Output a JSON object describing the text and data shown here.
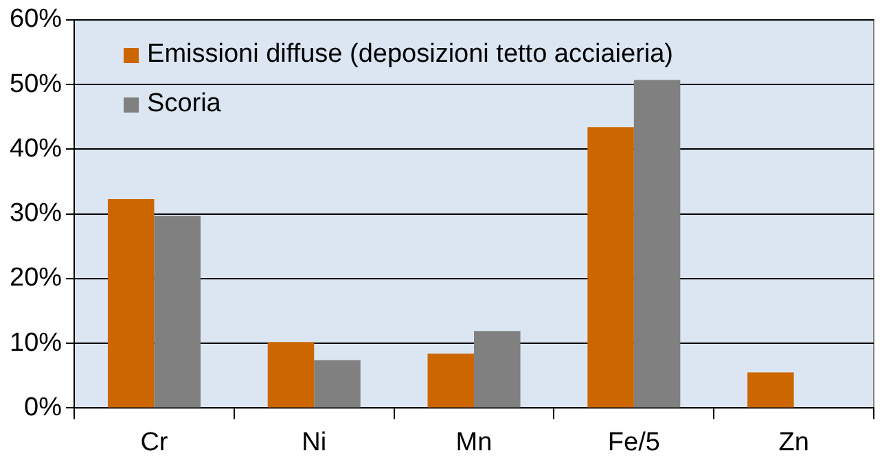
{
  "chart_data": {
    "type": "bar",
    "categories": [
      "Cr",
      "Ni",
      "Mn",
      "Fe/5",
      "Zn"
    ],
    "series": [
      {
        "name": "Emissioni diffuse (deposizioni tetto acciaieria)",
        "color": "#cc6600",
        "values": [
          32.3,
          10.2,
          8.4,
          43.4,
          5.5
        ]
      },
      {
        "name": "Scoria",
        "color": "#808080",
        "values": [
          29.7,
          7.4,
          11.9,
          50.7,
          null
        ]
      }
    ],
    "ylim": [
      0,
      60
    ],
    "yticks": [
      {
        "value": 0,
        "label": "0%"
      },
      {
        "value": 10,
        "label": "10%"
      },
      {
        "value": 20,
        "label": "20%"
      },
      {
        "value": 30,
        "label": "30%"
      },
      {
        "value": 40,
        "label": "40%"
      },
      {
        "value": 50,
        "label": "50%"
      },
      {
        "value": 60,
        "label": "60%"
      }
    ],
    "grid": "y",
    "legend": "top left"
  }
}
